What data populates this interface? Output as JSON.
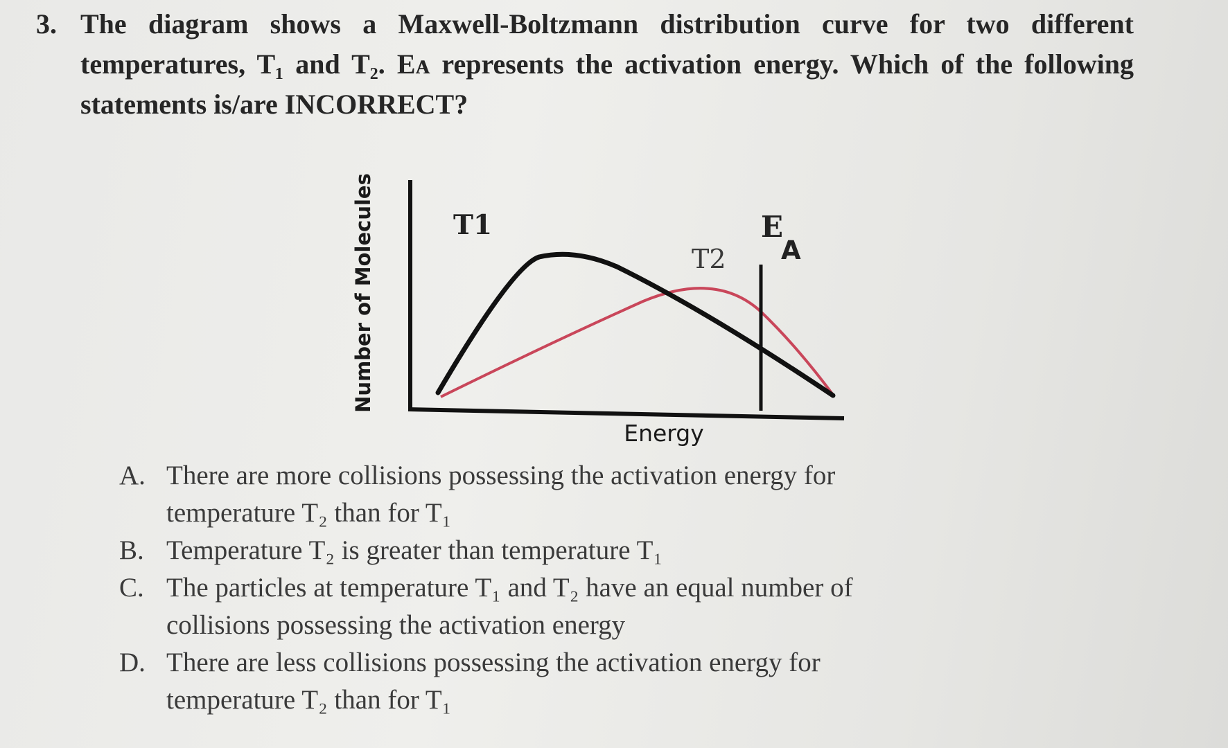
{
  "question": {
    "number": "3.",
    "text": "The diagram shows a Maxwell-Boltzmann distribution curve for two different temperatures, T₁ and T₂. Eᴀ represents the activation energy. Which of the following statements is/are INCORRECT?"
  },
  "diagram": {
    "y_axis_label": "Number of Molecules",
    "x_axis_label": "Energy",
    "curve_t1_label": "T1",
    "curve_t2_label": "T2",
    "activation_label_main": "E",
    "activation_label_sub": "A",
    "colors": {
      "t1_curve": "#111111",
      "t2_curve": "#c9465a",
      "axes": "#111111"
    }
  },
  "options": [
    {
      "letter": "A.",
      "text": "There are more collisions possessing the activation energy for temperature T₂ than for T₁"
    },
    {
      "letter": "B.",
      "text": "Temperature T₂ is greater than temperature T₁"
    },
    {
      "letter": "C.",
      "text": "The particles at temperature T₁ and T₂ have an equal number of collisions possessing the activation energy"
    },
    {
      "letter": "D.",
      "text": "There are less collisions possessing the activation energy for temperature T₂ than for T₁"
    }
  ]
}
